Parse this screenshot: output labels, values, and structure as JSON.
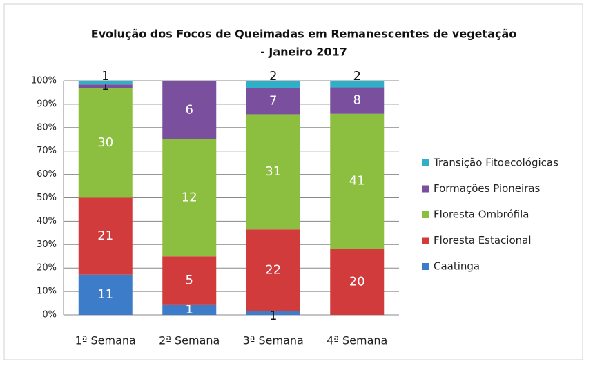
{
  "chart_data": {
    "type": "stacked_percent_bar",
    "title": [
      "Evolução dos Focos de Queimadas em Remanescentes de vegetação",
      "- Janeiro 2017"
    ],
    "categories": [
      "1ª Semana",
      "2ª Semana",
      "3ª Semana",
      "4ª Semana"
    ],
    "series": [
      {
        "name": "Caatinga",
        "color": "#3d7cc9",
        "values": [
          11,
          1,
          1,
          null
        ]
      },
      {
        "name": "Floresta Estacional",
        "color": "#d13b3b",
        "values": [
          21,
          5,
          22,
          20
        ]
      },
      {
        "name": "Floresta Ombrófila",
        "color": "#8cbf3f",
        "values": [
          30,
          12,
          31,
          41
        ]
      },
      {
        "name": "Formações Pioneiras",
        "color": "#7a4f9e",
        "values": [
          1,
          6,
          7,
          8
        ]
      },
      {
        "name": "Transição Fitoecológicas",
        "color": "#2fb0c8",
        "values": [
          1,
          null,
          2,
          2
        ]
      }
    ],
    "ylim": [
      0,
      100
    ],
    "yticks": [
      {
        "value": 0,
        "label": "0%"
      },
      {
        "value": 10,
        "label": "10%"
      },
      {
        "value": 20,
        "label": "20%"
      },
      {
        "value": 30,
        "label": "30%"
      },
      {
        "value": 40,
        "label": "40%"
      },
      {
        "value": 50,
        "label": "50%"
      },
      {
        "value": 60,
        "label": "60%"
      },
      {
        "value": 70,
        "label": "70%"
      },
      {
        "value": 80,
        "label": "80%"
      },
      {
        "value": 90,
        "label": "90%"
      },
      {
        "value": 100,
        "label": "100%"
      }
    ],
    "grid": true,
    "legend": "right"
  }
}
